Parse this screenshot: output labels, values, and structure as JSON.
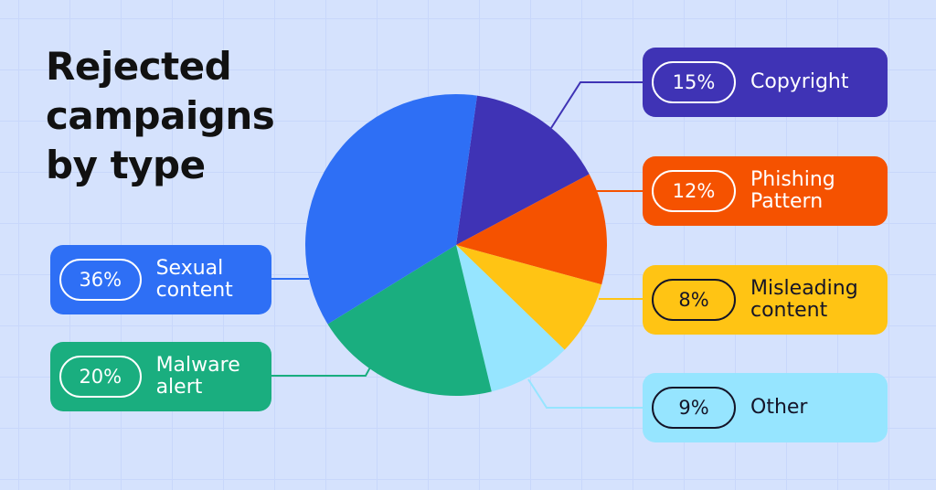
{
  "chart_data": {
    "type": "pie",
    "title": "Rejected campaigns by type",
    "categories": [
      "Copyright",
      "Phishing Pattern",
      "Misleading content",
      "Other",
      "Malware alert",
      "Sexual content"
    ],
    "values": [
      15,
      12,
      8,
      9,
      20,
      36
    ],
    "value_labels": [
      "15%",
      "12%",
      "8%",
      "9%",
      "20%",
      "36%"
    ],
    "colors": [
      "#3f33b5",
      "#f55200",
      "#ffc414",
      "#96e5ff",
      "#1aae7f",
      "#2e6ff5"
    ]
  }
}
